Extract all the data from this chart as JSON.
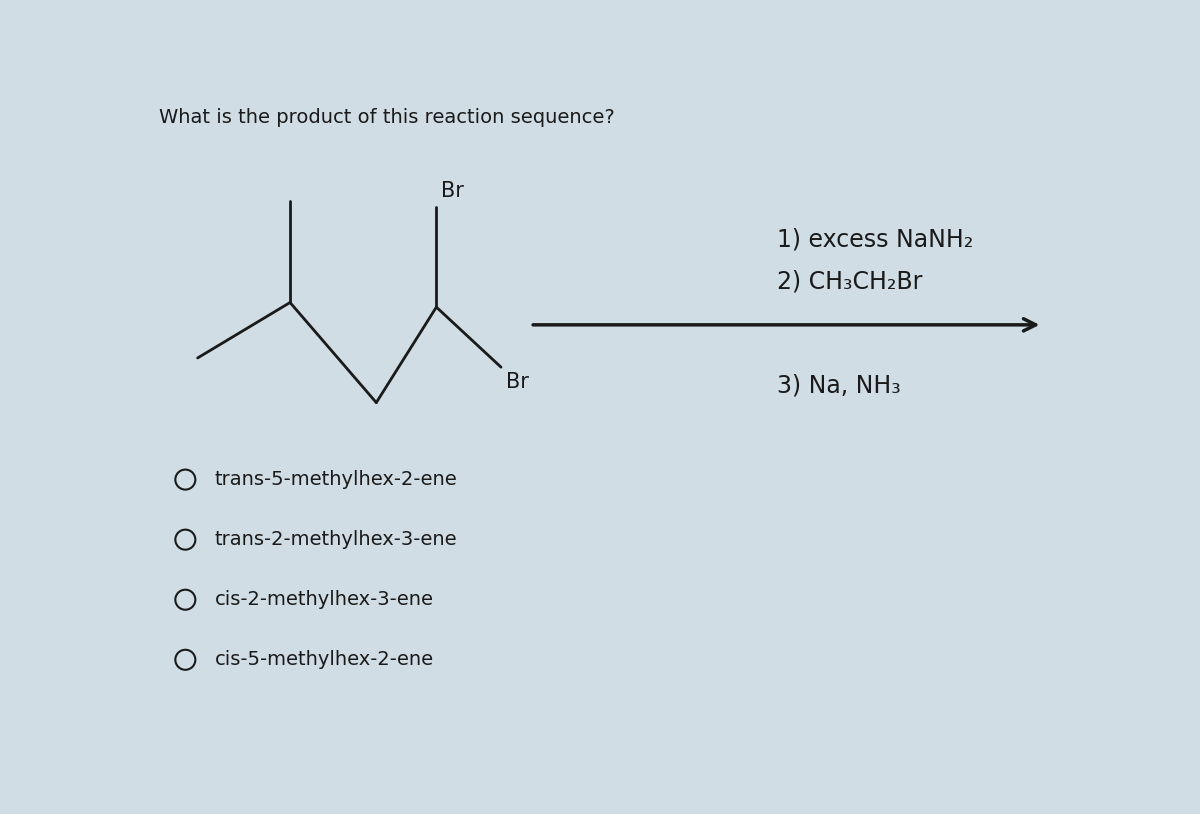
{
  "title": "What is the product of this reaction sequence?",
  "title_fontsize": 14,
  "background_color": "#d0dde4",
  "text_color": "#1a1a1a",
  "reaction_line1": "1) excess NaNH₂",
  "reaction_line2": "2) CH₃CH₂Br",
  "reaction_line3": "3) Na, NH₃",
  "choices": [
    "trans-5-methylhex-2-ene",
    "trans-2-methylhex-3-ene",
    "cis-2-methylhex-3-ene",
    "cis-5-methylhex-2-ene"
  ],
  "choice_fontsize": 14,
  "cond_fontsize": 17,
  "molecule_color": "#1a1a1a",
  "br_label": "Br",
  "arrow_color": "#1a1a1a",
  "mol_lw": 2.0,
  "arrow_lw": 2.5
}
